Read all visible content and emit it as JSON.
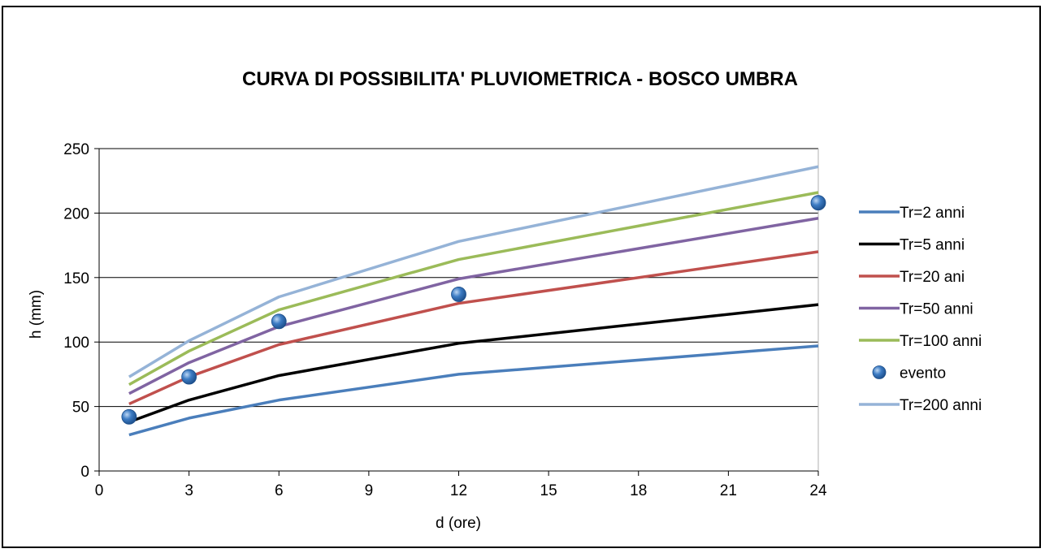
{
  "chart_data": {
    "type": "line",
    "title": "CURVA DI POSSIBILITA' PLUVIOMETRICA - BOSCO UMBRA",
    "xlabel": "d (ore)",
    "ylabel": "h (mm)",
    "xlim": [
      0,
      24
    ],
    "ylim": [
      0,
      250
    ],
    "xticks": [
      0,
      3,
      6,
      9,
      12,
      15,
      18,
      21,
      24
    ],
    "yticks": [
      0,
      50,
      100,
      150,
      200,
      250
    ],
    "x": [
      1,
      3,
      6,
      12,
      24
    ],
    "grid": "horizontal",
    "legend_position": "right",
    "series": [
      {
        "name": "Tr=2 anni",
        "kind": "line",
        "color": "#4a7ebb",
        "values": [
          28,
          41,
          55,
          75,
          97
        ]
      },
      {
        "name": "Tr=5 anni",
        "kind": "line",
        "color": "#000000",
        "values": [
          38,
          55,
          74,
          99,
          129
        ]
      },
      {
        "name": "Tr=20 ani",
        "kind": "line",
        "color": "#c0504d",
        "values": [
          52,
          73,
          98,
          130,
          170
        ]
      },
      {
        "name": "Tr=50 anni",
        "kind": "line",
        "color": "#8064a2",
        "values": [
          60,
          84,
          112,
          149,
          196
        ]
      },
      {
        "name": "Tr=100 anni",
        "kind": "line",
        "color": "#9bbb59",
        "values": [
          67,
          93,
          125,
          164,
          216
        ]
      },
      {
        "name": "evento",
        "kind": "marker",
        "color": "#2f6db5",
        "values": [
          42,
          73,
          116,
          137,
          208
        ]
      },
      {
        "name": "Tr=200 anni",
        "kind": "line",
        "color": "#95b3d7",
        "values": [
          73,
          101,
          135,
          178,
          236
        ]
      }
    ]
  }
}
